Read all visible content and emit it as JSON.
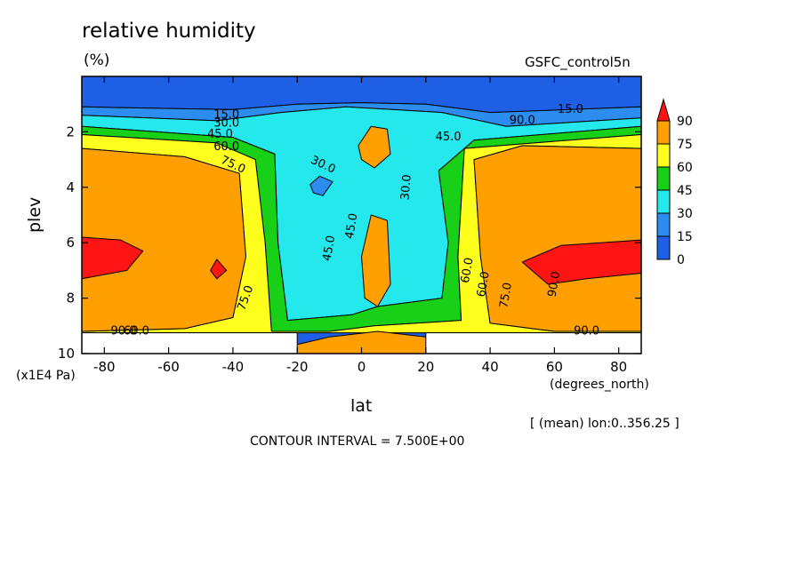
{
  "header": {
    "title": "relative humidity",
    "unit": "(%)",
    "run": "GSFC_control5n"
  },
  "footer": {
    "x_units": "(degrees_north)",
    "y_scale": "(x1E4 Pa)",
    "mean_note": "[ (mean) lon:0..356.25 ]",
    "contour_interval": "CONTOUR INTERVAL = 7.500E+00"
  },
  "colorbar": {
    "levels": [
      "0",
      "15",
      "30",
      "45",
      "60",
      "75",
      "90"
    ],
    "colors": [
      "#1e5fe6",
      "#2c8cf0",
      "#25e8ec",
      "#18d018",
      "#ffff1e",
      "#ffa000",
      "#ff1414"
    ]
  },
  "chart_data": {
    "type": "heatmap",
    "title": "relative humidity",
    "subtitle": "(%)",
    "xlabel": "lat",
    "ylabel": "plev",
    "xlim": [
      -87,
      87
    ],
    "ylim": [
      10,
      0
    ],
    "xticks": [
      -80,
      -60,
      -40,
      -20,
      0,
      20,
      40,
      60,
      80
    ],
    "yticks": [
      2,
      4,
      6,
      8,
      10
    ],
    "contour_levels": [
      0,
      15,
      30,
      45,
      60,
      75,
      90
    ],
    "contour_labels": [
      "15.0",
      "30.0",
      "45.0",
      "60.0",
      "75.0",
      "90.0",
      "15.0",
      "30.0",
      "45.0",
      "30.0",
      "45.0",
      "45.0",
      "60.0",
      "60.0",
      "75.0",
      "75.0",
      "90.0",
      "60.0",
      "90.0",
      "90.0"
    ],
    "bands": [
      {
        "level": 0,
        "outline": [
          [
            -87,
            0
          ],
          [
            87,
            0
          ],
          [
            87,
            1.1
          ],
          [
            40,
            1.3
          ],
          [
            20,
            1.0
          ],
          [
            0,
            0.95
          ],
          [
            -20,
            1.0
          ],
          [
            -40,
            1.2
          ],
          [
            -87,
            1.1
          ]
        ]
      },
      {
        "level": 15,
        "outline": [
          [
            -87,
            1.1
          ],
          [
            -40,
            1.2
          ],
          [
            -20,
            1.0
          ],
          [
            0,
            0.95
          ],
          [
            20,
            1.0
          ],
          [
            40,
            1.3
          ],
          [
            87,
            1.1
          ],
          [
            87,
            1.5
          ],
          [
            45,
            1.8
          ],
          [
            25,
            1.3
          ],
          [
            10,
            1.2
          ],
          [
            -5,
            1.1
          ],
          [
            -25,
            1.3
          ],
          [
            -45,
            1.6
          ],
          [
            -87,
            1.4
          ]
        ]
      },
      {
        "level": 30,
        "outline": [
          [
            -87,
            1.4
          ],
          [
            -45,
            1.6
          ],
          [
            -25,
            1.3
          ],
          [
            -5,
            1.1
          ],
          [
            10,
            1.2
          ],
          [
            25,
            1.3
          ],
          [
            45,
            1.8
          ],
          [
            87,
            1.5
          ],
          [
            87,
            1.8
          ],
          [
            35,
            2.3
          ],
          [
            24,
            3.4
          ],
          [
            27,
            6.0
          ],
          [
            25,
            8.0
          ],
          [
            5,
            8.3
          ],
          [
            -3,
            8.6
          ],
          [
            -23,
            8.8
          ],
          [
            -26,
            6.0
          ],
          [
            -27,
            2.8
          ],
          [
            -40,
            2.2
          ],
          [
            -87,
            1.8
          ]
        ]
      },
      {
        "level": 45,
        "outline": [
          [
            -87,
            1.8
          ],
          [
            -40,
            2.2
          ],
          [
            -27,
            2.8
          ],
          [
            -26,
            6.0
          ],
          [
            -23,
            8.8
          ],
          [
            -3,
            8.6
          ],
          [
            5,
            8.3
          ],
          [
            25,
            8.0
          ],
          [
            27,
            6.0
          ],
          [
            24,
            3.4
          ],
          [
            35,
            2.3
          ],
          [
            87,
            1.8
          ],
          [
            87,
            2.1
          ],
          [
            32,
            2.6
          ],
          [
            30,
            6.5
          ],
          [
            31,
            8.8
          ],
          [
            4,
            9.0
          ],
          [
            -10,
            9.2
          ],
          [
            -28,
            9.2
          ],
          [
            -30,
            6.0
          ],
          [
            -33,
            3.0
          ],
          [
            -45,
            2.4
          ],
          [
            -87,
            2.1
          ]
        ]
      },
      {
        "level": 60,
        "outline": [
          [
            -87,
            2.1
          ],
          [
            -45,
            2.4
          ],
          [
            -33,
            3.0
          ],
          [
            -30,
            6.0
          ],
          [
            -28,
            9.2
          ],
          [
            -10,
            9.2
          ],
          [
            4,
            9.0
          ],
          [
            31,
            8.8
          ],
          [
            30,
            6.5
          ],
          [
            32,
            2.6
          ],
          [
            87,
            2.1
          ],
          [
            87,
            2.6
          ],
          [
            50,
            2.5
          ],
          [
            35,
            3.0
          ],
          [
            37,
            6.5
          ],
          [
            40,
            8.9
          ],
          [
            60,
            9.2
          ],
          [
            87,
            9.2
          ],
          [
            87,
            9.25
          ],
          [
            -87,
            9.25
          ],
          [
            -87,
            9.2
          ],
          [
            -55,
            9.1
          ],
          [
            -40,
            8.7
          ],
          [
            -36,
            6.5
          ],
          [
            -38,
            3.5
          ],
          [
            -55,
            2.9
          ],
          [
            -87,
            2.6
          ]
        ]
      },
      {
        "level": 75,
        "outline": [
          [
            -87,
            2.6
          ],
          [
            -55,
            2.9
          ],
          [
            -38,
            3.5
          ],
          [
            -36,
            6.5
          ],
          [
            -40,
            8.7
          ],
          [
            -55,
            9.1
          ],
          [
            -87,
            9.2
          ]
        ]
      },
      {
        "level": 75,
        "outline": [
          [
            87,
            2.6
          ],
          [
            50,
            2.5
          ],
          [
            35,
            3.0
          ],
          [
            37,
            6.5
          ],
          [
            40,
            8.9
          ],
          [
            60,
            9.2
          ],
          [
            87,
            9.2
          ]
        ]
      },
      {
        "level": 75,
        "outline": [
          [
            -1,
            2.5
          ],
          [
            3,
            1.8
          ],
          [
            8,
            1.9
          ],
          [
            9,
            2.8
          ],
          [
            4,
            3.3
          ],
          [
            0,
            3.0
          ]
        ]
      },
      {
        "level": 75,
        "outline": [
          [
            0,
            6.5
          ],
          [
            3,
            5.0
          ],
          [
            8,
            5.2
          ],
          [
            9,
            7.5
          ],
          [
            5,
            8.3
          ],
          [
            1,
            8.0
          ]
        ]
      },
      {
        "level": 75,
        "outline": [
          [
            -21,
            9.7
          ],
          [
            -10,
            9.4
          ],
          [
            5,
            9.2
          ],
          [
            20,
            9.4
          ],
          [
            21,
            9.7
          ],
          [
            20,
            10
          ],
          [
            -20,
            10
          ]
        ]
      },
      {
        "level": 90,
        "outline": [
          [
            -87,
            5.8
          ],
          [
            -75,
            5.9
          ],
          [
            -68,
            6.3
          ],
          [
            -73,
            7.0
          ],
          [
            -87,
            7.3
          ]
        ]
      },
      {
        "level": 90,
        "outline": [
          [
            87,
            5.9
          ],
          [
            62,
            6.1
          ],
          [
            50,
            6.7
          ],
          [
            58,
            7.5
          ],
          [
            70,
            7.3
          ],
          [
            87,
            7.1
          ]
        ]
      },
      {
        "level": 90,
        "outline": [
          [
            -47,
            7.0
          ],
          [
            -45,
            6.6
          ],
          [
            -42,
            7.0
          ],
          [
            -45,
            7.3
          ]
        ]
      },
      {
        "level": 15,
        "outline": [
          [
            -16,
            3.9
          ],
          [
            -13,
            3.6
          ],
          [
            -9,
            3.8
          ],
          [
            -12,
            4.3
          ],
          [
            -15,
            4.2
          ]
        ]
      }
    ],
    "masked": [
      {
        "x": [
          -87,
          -20
        ],
        "y_from": 9.25
      },
      {
        "x": [
          20,
          87
        ],
        "y_from": 9.25
      }
    ]
  }
}
